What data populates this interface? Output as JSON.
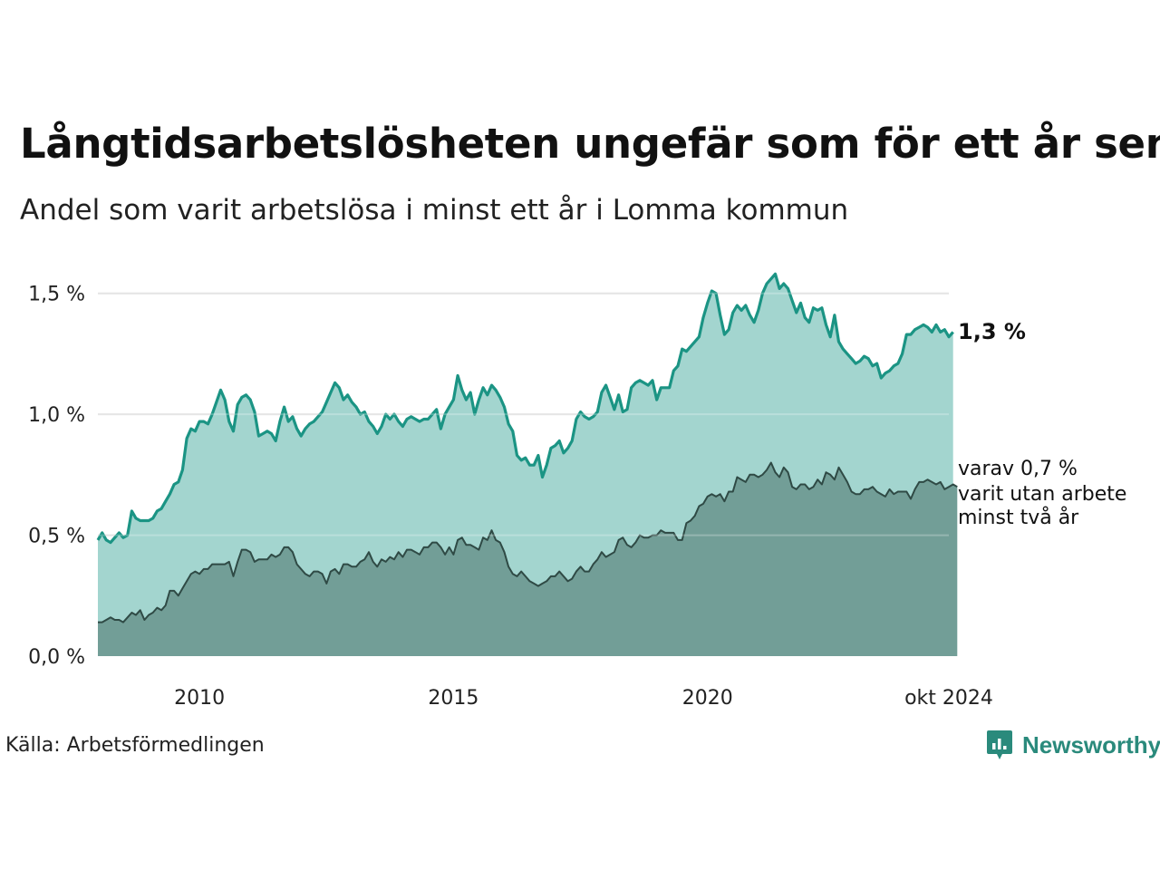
{
  "title": "Långtidsarbetslösheten ungefär som för ett år sen",
  "subtitle": "Andel som varit arbetslösa i minst ett år i Lomma kommun",
  "source": "Källa: Arbetsförmedlingen",
  "brand": "Newsworthy",
  "colors": {
    "series1_line": "#1b9484",
    "series1_fill": "#a3d5cf",
    "series2_line": "#2f4a45",
    "series2_fill": "#729e97",
    "grid": "#dcdcdc",
    "brand": "#2a8a7c"
  },
  "annotations": {
    "series1_value": "1,3 %",
    "series2_lines": [
      "varav 0,7 %",
      "varit utan arbete",
      "minst två år"
    ]
  },
  "chart_data": {
    "type": "area",
    "x_start": 2008.0,
    "x_step": 0.0833333,
    "xlim": [
      2008.0,
      2024.75
    ],
    "ylim": [
      0,
      1.6
    ],
    "y_ticks": [
      {
        "value": 0,
        "label": "0,0 %"
      },
      {
        "value": 0.5,
        "label": "0,5 %"
      },
      {
        "value": 1.0,
        "label": "1,0 %"
      },
      {
        "value": 1.5,
        "label": "1,5 %"
      }
    ],
    "x_ticks": [
      {
        "value": 2010,
        "label": "2010"
      },
      {
        "value": 2015,
        "label": "2015"
      },
      {
        "value": 2020,
        "label": "2020"
      },
      {
        "value": 2024.75,
        "label": "okt 2024"
      }
    ],
    "grid": true,
    "series": [
      {
        "values": [
          0.48,
          0.51,
          0.48,
          0.47,
          0.49,
          0.51,
          0.49,
          0.5,
          0.6,
          0.57,
          0.56,
          0.56,
          0.56,
          0.57,
          0.6,
          0.61,
          0.64,
          0.67,
          0.71,
          0.72,
          0.77,
          0.9,
          0.94,
          0.93,
          0.97,
          0.97,
          0.96,
          1.0,
          1.05,
          1.1,
          1.06,
          0.97,
          0.93,
          1.04,
          1.07,
          1.08,
          1.06,
          1.01,
          0.91,
          0.92,
          0.93,
          0.92,
          0.89,
          0.97,
          1.03,
          0.97,
          0.99,
          0.94,
          0.91,
          0.94,
          0.96,
          0.97,
          0.99,
          1.01,
          1.05,
          1.09,
          1.13,
          1.11,
          1.06,
          1.08,
          1.05,
          1.03,
          1.0,
          1.01,
          0.97,
          0.95,
          0.92,
          0.95,
          1.0,
          0.98,
          1.0,
          0.97,
          0.95,
          0.98,
          0.99,
          0.98,
          0.97,
          0.98,
          0.98,
          1.0,
          1.02,
          0.94,
          1.0,
          1.03,
          1.06,
          1.16,
          1.1,
          1.06,
          1.09,
          1.0,
          1.06,
          1.11,
          1.08,
          1.12,
          1.1,
          1.07,
          1.03,
          0.96,
          0.93,
          0.83,
          0.81,
          0.82,
          0.79,
          0.79,
          0.83,
          0.74,
          0.79,
          0.86,
          0.87,
          0.89,
          0.84,
          0.86,
          0.89,
          0.98,
          1.01,
          0.99,
          0.98,
          0.99,
          1.01,
          1.09,
          1.12,
          1.07,
          1.02,
          1.08,
          1.01,
          1.02,
          1.11,
          1.13,
          1.14,
          1.13,
          1.12,
          1.14,
          1.06,
          1.11,
          1.11,
          1.11,
          1.18,
          1.2,
          1.27,
          1.26,
          1.28,
          1.3,
          1.32,
          1.4,
          1.46,
          1.51,
          1.5,
          1.41,
          1.33,
          1.35,
          1.42,
          1.45,
          1.43,
          1.45,
          1.41,
          1.38,
          1.43,
          1.5,
          1.54,
          1.56,
          1.58,
          1.52,
          1.54,
          1.52,
          1.47,
          1.42,
          1.46,
          1.4,
          1.38,
          1.44,
          1.43,
          1.44,
          1.37,
          1.32,
          1.41,
          1.3,
          1.27,
          1.25,
          1.23,
          1.21,
          1.22,
          1.24,
          1.23,
          1.2,
          1.21,
          1.15,
          1.17,
          1.18,
          1.2,
          1.21,
          1.25,
          1.33,
          1.33,
          1.35,
          1.36,
          1.37,
          1.36,
          1.34,
          1.37,
          1.34,
          1.35,
          1.32,
          1.34
        ],
        "end_label": "1,3 %"
      },
      {
        "values": [
          0.14,
          0.14,
          0.15,
          0.16,
          0.15,
          0.15,
          0.14,
          0.16,
          0.18,
          0.17,
          0.19,
          0.15,
          0.17,
          0.18,
          0.2,
          0.19,
          0.21,
          0.27,
          0.27,
          0.25,
          0.28,
          0.31,
          0.34,
          0.35,
          0.34,
          0.36,
          0.36,
          0.38,
          0.38,
          0.38,
          0.38,
          0.39,
          0.33,
          0.39,
          0.44,
          0.44,
          0.43,
          0.39,
          0.4,
          0.4,
          0.4,
          0.42,
          0.41,
          0.42,
          0.45,
          0.45,
          0.43,
          0.38,
          0.36,
          0.34,
          0.33,
          0.35,
          0.35,
          0.34,
          0.3,
          0.35,
          0.36,
          0.34,
          0.38,
          0.38,
          0.37,
          0.37,
          0.39,
          0.4,
          0.43,
          0.39,
          0.37,
          0.4,
          0.39,
          0.41,
          0.4,
          0.43,
          0.41,
          0.44,
          0.44,
          0.43,
          0.42,
          0.45,
          0.45,
          0.47,
          0.47,
          0.45,
          0.42,
          0.45,
          0.42,
          0.48,
          0.49,
          0.46,
          0.46,
          0.45,
          0.44,
          0.49,
          0.48,
          0.52,
          0.48,
          0.47,
          0.43,
          0.37,
          0.34,
          0.33,
          0.35,
          0.33,
          0.31,
          0.3,
          0.29,
          0.3,
          0.31,
          0.33,
          0.33,
          0.35,
          0.33,
          0.31,
          0.32,
          0.35,
          0.37,
          0.35,
          0.35,
          0.38,
          0.4,
          0.43,
          0.41,
          0.42,
          0.43,
          0.48,
          0.49,
          0.46,
          0.45,
          0.47,
          0.5,
          0.49,
          0.49,
          0.5,
          0.5,
          0.52,
          0.51,
          0.51,
          0.51,
          0.48,
          0.48,
          0.55,
          0.56,
          0.58,
          0.62,
          0.63,
          0.66,
          0.67,
          0.66,
          0.67,
          0.64,
          0.68,
          0.68,
          0.74,
          0.73,
          0.72,
          0.75,
          0.75,
          0.74,
          0.75,
          0.77,
          0.8,
          0.76,
          0.74,
          0.78,
          0.76,
          0.7,
          0.69,
          0.71,
          0.71,
          0.69,
          0.7,
          0.73,
          0.71,
          0.76,
          0.75,
          0.73,
          0.78,
          0.75,
          0.72,
          0.68,
          0.67,
          0.67,
          0.69,
          0.69,
          0.7,
          0.68,
          0.67,
          0.66,
          0.69,
          0.67,
          0.68,
          0.68,
          0.68,
          0.65,
          0.69,
          0.72,
          0.72,
          0.73,
          0.72,
          0.71,
          0.72,
          0.69,
          0.7,
          0.71,
          0.7
        ],
        "end_label": "varav 0,7 % varit utan arbete minst två år"
      }
    ]
  }
}
